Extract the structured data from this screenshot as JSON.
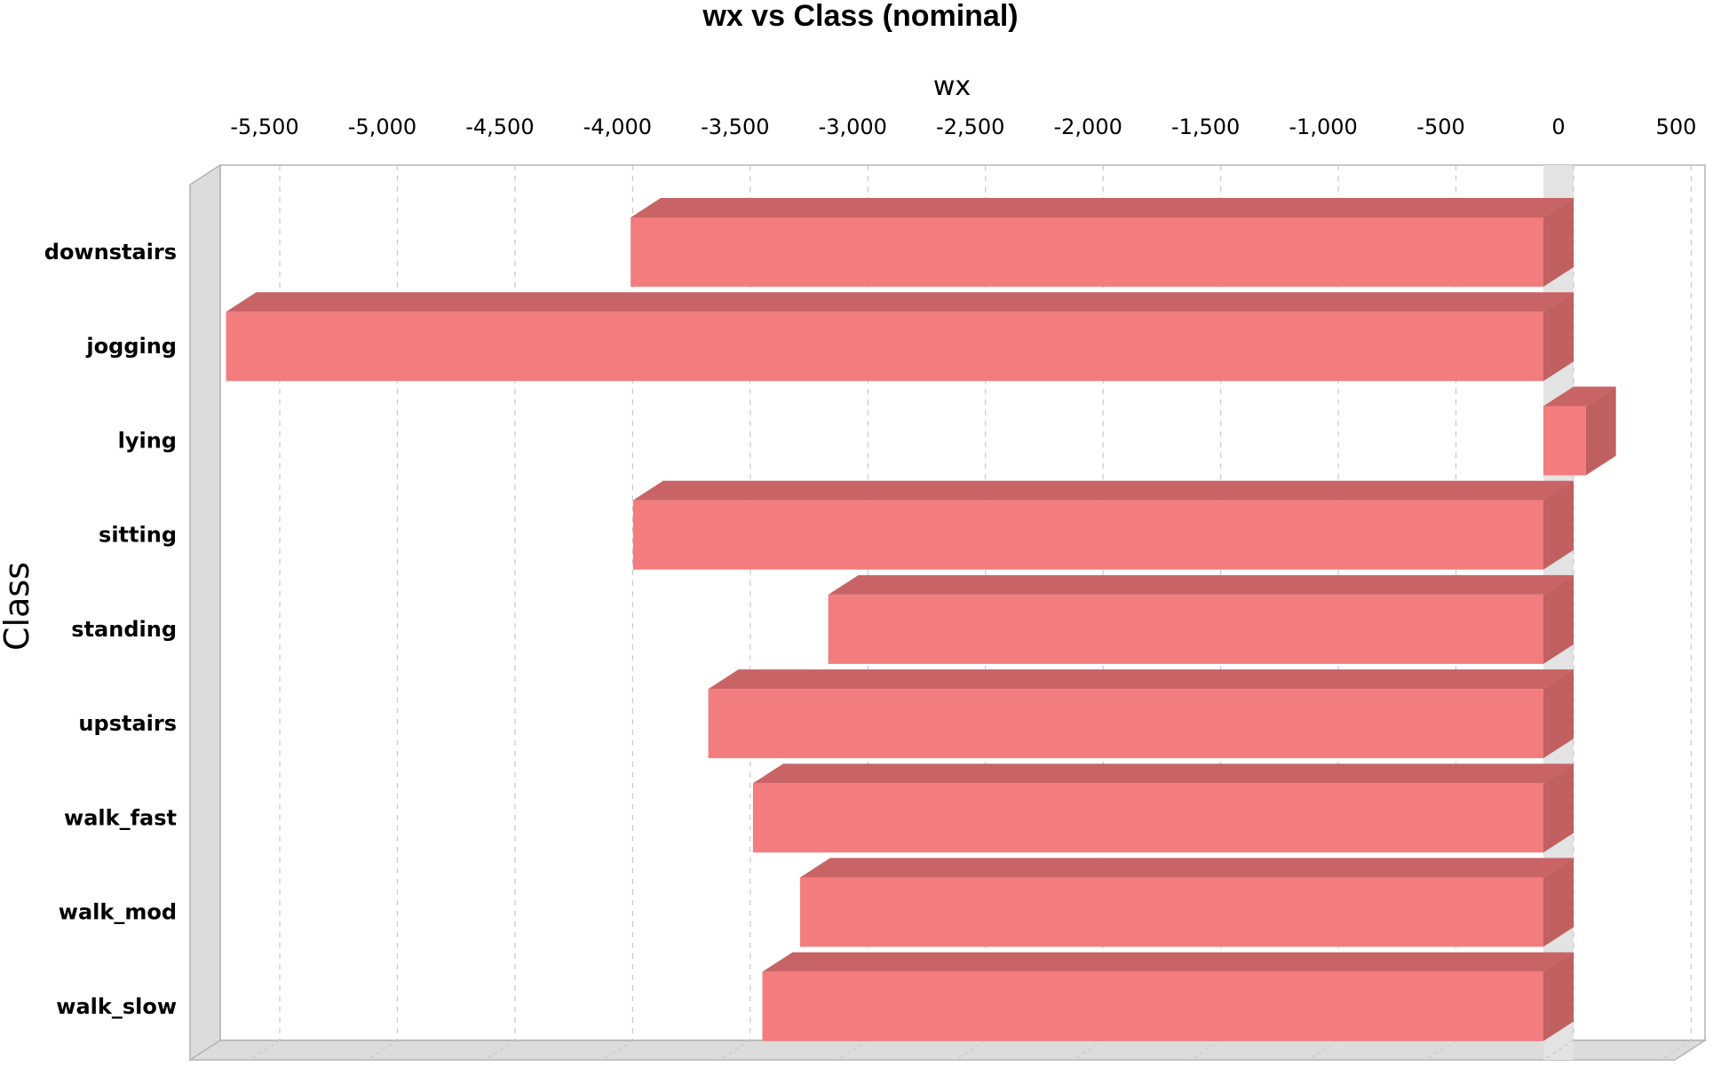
{
  "chart_data": {
    "type": "bar",
    "orientation": "horizontal",
    "style": "3d",
    "title": "wx vs Class (nominal)",
    "xlabel": "wx",
    "ylabel": "Class",
    "x_axis_position": "top",
    "xlim": [
      -5800,
      500
    ],
    "xticks": [
      -5500,
      -5000,
      -4500,
      -4000,
      -3500,
      -3000,
      -2500,
      -2000,
      -1500,
      -1000,
      -500,
      0,
      500
    ],
    "xtick_labels": [
      "-5,500",
      "-5,000",
      "-4,500",
      "-4,000",
      "-3,500",
      "-3,000",
      "-2,500",
      "-2,000",
      "-1,500",
      "-1,000",
      "-500",
      "0",
      "500"
    ],
    "grid": true,
    "categories": [
      "downstairs",
      "jogging",
      "lying",
      "sitting",
      "standing",
      "upstairs",
      "walk_fast",
      "walk_mod",
      "walk_slow"
    ],
    "values": [
      -3880,
      -5600,
      180,
      -3870,
      -3040,
      -3550,
      -3360,
      -3160,
      -3320
    ],
    "colors": {
      "bar_front": "#f27c7e",
      "bar_top": "#c86466",
      "bar_side": "#c06060",
      "wall": "#dcdcdc",
      "wall_stroke": "#b4b4b4",
      "grid": "#c8c8c8",
      "zero_band": "#e3e3e3"
    }
  }
}
